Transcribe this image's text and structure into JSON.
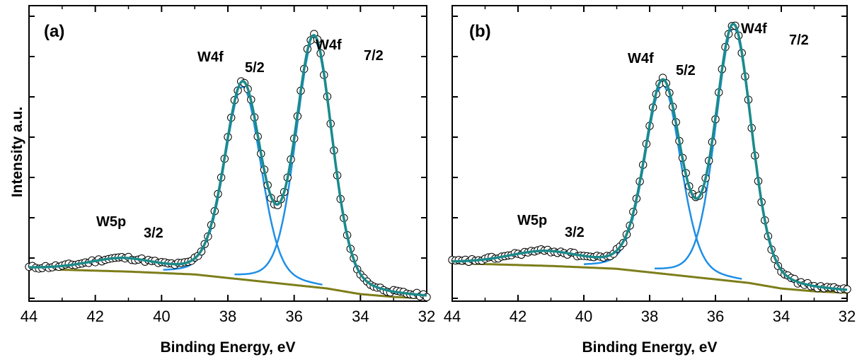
{
  "shared": {
    "ylabel": "Intensity a.u.",
    "xlabel": "Binding Energy, eV",
    "colors": {
      "frame": "#000000",
      "fit_envelope": "#1b8a8a",
      "components": "#1f8fe6",
      "background": "#7d7d1a",
      "data_marker": "#000000"
    }
  },
  "chart_data": [
    {
      "type": "scatter",
      "panel_label": "(a)",
      "xlabel": "Binding Energy, eV",
      "ylabel": "Intensity a.u.",
      "xlim": [
        44,
        32
      ],
      "x_reversed": true,
      "xticks": [
        44,
        42,
        40,
        38,
        36,
        34,
        32
      ],
      "ylim": [
        0,
        1.05
      ],
      "y_tick_labels_shown": false,
      "peaks": [
        {
          "name": "W4f",
          "sub": "7/2",
          "center": 35.4,
          "height": 0.88,
          "fwhm": 1.3
        },
        {
          "name": "W4f",
          "sub": "5/2",
          "center": 37.55,
          "height": 0.685,
          "fwhm": 1.3
        },
        {
          "name": "W5p",
          "sub": "3/2",
          "center": 41.2,
          "height": 0.04,
          "fwhm": 2.4
        }
      ],
      "background": {
        "x": [
          44,
          41,
          39,
          37,
          35,
          34,
          33,
          32
        ],
        "y": [
          0.115,
          0.105,
          0.095,
          0.07,
          0.045,
          0.025,
          0.015,
          0.01
        ]
      },
      "series": [
        {
          "role": "measured",
          "marker": "open-circle",
          "x_step": 0.1,
          "x_range": [
            32,
            44
          ]
        },
        {
          "role": "fit envelope"
        },
        {
          "role": "component peaks"
        },
        {
          "role": "background"
        }
      ]
    },
    {
      "type": "scatter",
      "panel_label": "(b)",
      "xlabel": "Binding Energy, eV",
      "ylabel": "",
      "xlim": [
        44,
        32
      ],
      "x_reversed": true,
      "xticks": [
        44,
        42,
        40,
        38,
        36,
        34,
        32
      ],
      "ylim": [
        0,
        1.05
      ],
      "y_tick_labels_shown": false,
      "peaks": [
        {
          "name": "W4f",
          "sub": "7/2",
          "center": 35.45,
          "height": 0.9,
          "fwhm": 1.3
        },
        {
          "name": "W4f",
          "sub": "5/2",
          "center": 37.6,
          "height": 0.67,
          "fwhm": 1.3
        },
        {
          "name": "W5p",
          "sub": "3/2",
          "center": 41.2,
          "height": 0.045,
          "fwhm": 2.6
        }
      ],
      "background": {
        "x": [
          44,
          41,
          39,
          37,
          35,
          34,
          33,
          32
        ],
        "y": [
          0.135,
          0.125,
          0.115,
          0.09,
          0.065,
          0.045,
          0.035,
          0.03
        ]
      },
      "series": [
        {
          "role": "measured",
          "marker": "open-circle",
          "x_step": 0.1,
          "x_range": [
            32,
            44
          ]
        },
        {
          "role": "fit envelope"
        },
        {
          "role": "component peaks"
        },
        {
          "role": "background"
        }
      ]
    }
  ]
}
